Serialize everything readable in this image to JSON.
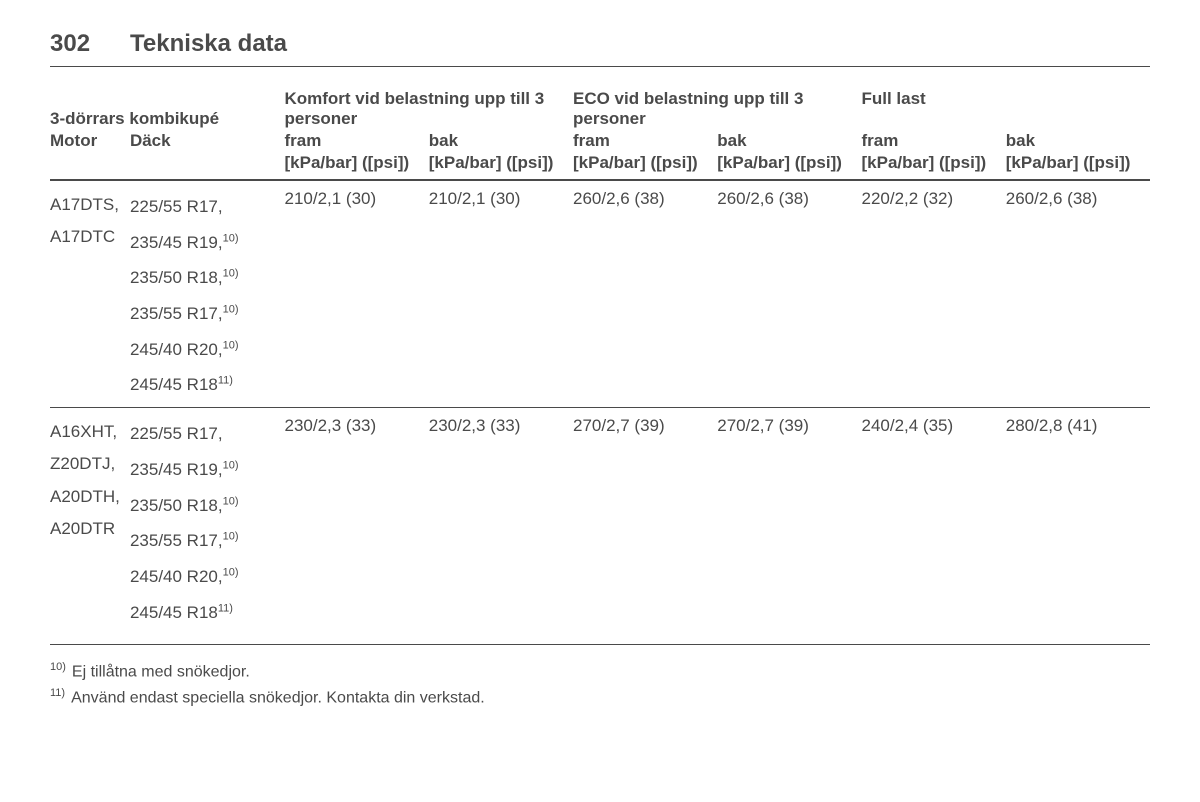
{
  "page_number": "302",
  "section_title": "Tekniska data",
  "table": {
    "top_left_label": "3-dörrars kombikupé",
    "group_headers": [
      "Komfort vid belastning upp till 3 personer",
      "ECO vid belastning upp till 3 personer",
      "Full last"
    ],
    "col_motor": "Motor",
    "col_tire": "Däck",
    "sub_cols": [
      "fram",
      "bak",
      "fram",
      "bak",
      "fram",
      "bak"
    ],
    "unit_label": "[kPa/bar] ([psi])",
    "rows": [
      {
        "motors": [
          "A17DTS,",
          "A17DTC"
        ],
        "tires": [
          {
            "t": "225/55 R17,",
            "sup": ""
          },
          {
            "t": "235/45 R19,",
            "sup": "10)"
          },
          {
            "t": "235/50 R18,",
            "sup": "10)"
          },
          {
            "t": "235/55 R17,",
            "sup": "10)"
          },
          {
            "t": "245/40 R20,",
            "sup": "10)"
          },
          {
            "t": "245/45 R18",
            "sup": "11)"
          }
        ],
        "values": [
          "210/2,1 (30)",
          "210/2,1 (30)",
          "260/2,6 (38)",
          "260/2,6 (38)",
          "220/2,2 (32)",
          "260/2,6 (38)"
        ]
      },
      {
        "motors": [
          "A16XHT,",
          "Z20DTJ,",
          "A20DTH,",
          "A20DTR"
        ],
        "tires": [
          {
            "t": "225/55 R17,",
            "sup": ""
          },
          {
            "t": "235/45 R19,",
            "sup": "10)"
          },
          {
            "t": "235/50 R18,",
            "sup": "10)"
          },
          {
            "t": "235/55 R17,",
            "sup": "10)"
          },
          {
            "t": "245/40 R20,",
            "sup": "10)"
          },
          {
            "t": "245/45 R18",
            "sup": "11)"
          }
        ],
        "values": [
          "230/2,3 (33)",
          "230/2,3 (33)",
          "270/2,7 (39)",
          "270/2,7 (39)",
          "240/2,4 (35)",
          "280/2,8 (41)"
        ]
      }
    ]
  },
  "footnotes": [
    {
      "num": "10)",
      "text": "Ej tillåtna med snökedjor."
    },
    {
      "num": "11)",
      "text": "Använd endast speciella snökedjor. Kontakta din verkstad."
    }
  ]
}
